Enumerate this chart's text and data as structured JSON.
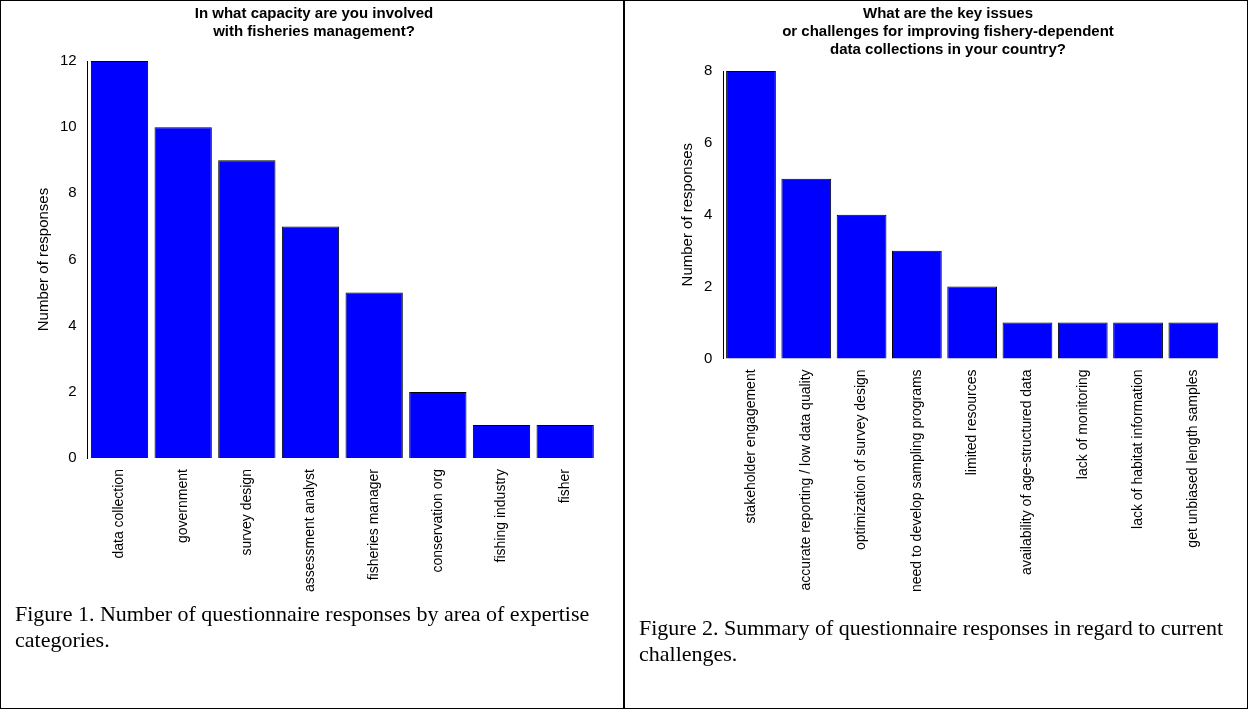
{
  "chart_data": [
    {
      "type": "bar",
      "title": "In what capacity are you involved\nwith fisheries management?",
      "ylabel": "Number of responses",
      "categories": [
        "data collection",
        "government",
        "survey design",
        "assessment analyst",
        "fisheries manager",
        "conservation org",
        "fishing industry",
        "fisher"
      ],
      "values": [
        12,
        10,
        9,
        7,
        5,
        2,
        1,
        1
      ],
      "color": "#0000ff",
      "ylim": [
        0,
        12
      ],
      "yticks": [
        0,
        2,
        4,
        6,
        8,
        10,
        12
      ],
      "annotations": [
        "Figure 1. Number of questionnaire responses by area of expertise categories."
      ]
    },
    {
      "type": "bar",
      "title": "What are the key issues\nor challenges for improving fishery-dependent\ndata collections in your country?",
      "ylabel": "Number of responses",
      "categories": [
        "stakeholder engagement",
        "accurate reporting / low data quality",
        "optimization of survey design",
        "need to develop sampling programs",
        "limited resources",
        "availability of age-structured data",
        "lack of monitoring",
        "lack of habitat information",
        "get unbiased length samples"
      ],
      "values": [
        8,
        5,
        4,
        3,
        2,
        1,
        1,
        1,
        1
      ],
      "color": "#0000ff",
      "ylim": [
        0,
        8
      ],
      "yticks": [
        0,
        2,
        4,
        6,
        8
      ],
      "annotations": [
        "Figure 2. Summary of questionnaire responses in regard to current challenges."
      ]
    }
  ]
}
